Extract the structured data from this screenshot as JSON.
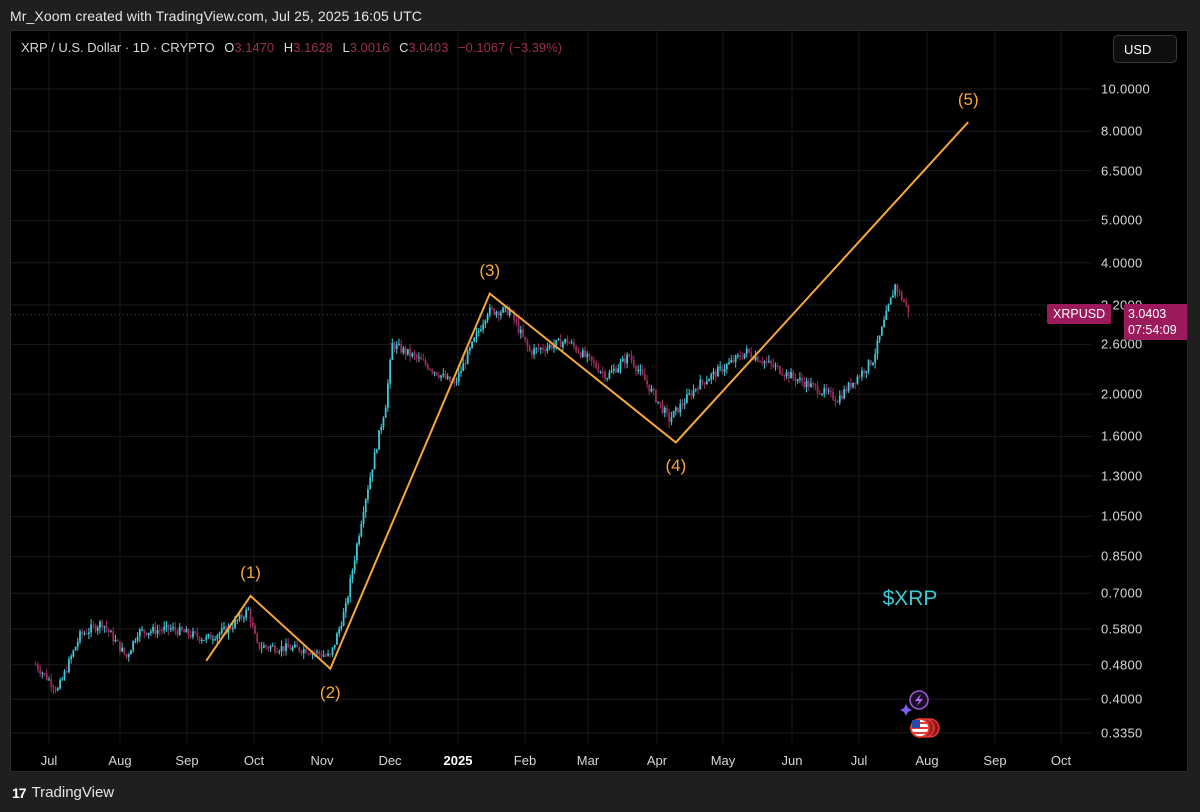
{
  "header": {
    "caption": "Mr_Xoom created with TradingView.com, Jul 25, 2025 16:05 UTC"
  },
  "legend": {
    "symbol": "XRP / U.S. Dollar · 1D · CRYPTO",
    "open_label": "O",
    "open": "3.1470",
    "high_label": "H",
    "high": "3.1628",
    "low_label": "L",
    "low": "3.0016",
    "close_label": "C",
    "close": "3.0403",
    "change": "−0.1067 (−3.39%)"
  },
  "currency_button": {
    "label": "USD"
  },
  "price_tag": {
    "symbol": "XRPUSD",
    "price": "3.0403",
    "countdown": "07:54:09",
    "color": "#9c1a5c"
  },
  "annotation": {
    "text": "$XRP",
    "color": "#3ec9d6"
  },
  "footer": {
    "brand": "TradingView",
    "logo": "17"
  },
  "colors": {
    "background": "#000000",
    "up_candle": "#3ec9d6",
    "down_candle": "#9c2c5b",
    "wave_line": "#f6a73a",
    "grid": "#1a1a1a"
  },
  "chart_data": {
    "type": "candlestick",
    "title": "XRP / U.S. Dollar · 1D · CRYPTO",
    "xlabel": "",
    "ylabel": "USD",
    "y_scale": "log",
    "ylim": [
      0.32,
      11.0
    ],
    "y_ticks": [
      "10.0000",
      "8.0000",
      "6.5000",
      "5.0000",
      "4.0000",
      "3.2000",
      "2.6000",
      "2.0000",
      "1.6000",
      "1.3000",
      "1.0500",
      "0.8500",
      "0.7000",
      "0.5800",
      "0.4800",
      "0.4000",
      "0.3350"
    ],
    "x_ticks": [
      "Jul",
      "Aug",
      "Sep",
      "Oct",
      "Nov",
      "Dec",
      "2025",
      "Feb",
      "Mar",
      "Apr",
      "May",
      "Jun",
      "Jul",
      "Aug",
      "Sep",
      "Oct"
    ],
    "grid": true,
    "last_price": 3.0403,
    "ohlc_last": {
      "open": 3.147,
      "high": 3.1628,
      "low": 3.0016,
      "close": 3.0403,
      "change": -0.1067,
      "change_pct": -3.39
    },
    "price_path": [
      {
        "date": "2024-06-25",
        "price": 0.48
      },
      {
        "date": "2024-07-05",
        "price": 0.42
      },
      {
        "date": "2024-07-15",
        "price": 0.56
      },
      {
        "date": "2024-07-25",
        "price": 0.6
      },
      {
        "date": "2024-08-05",
        "price": 0.5
      },
      {
        "date": "2024-08-10",
        "price": 0.57
      },
      {
        "date": "2024-08-25",
        "price": 0.58
      },
      {
        "date": "2024-09-10",
        "price": 0.55
      },
      {
        "date": "2024-09-20",
        "price": 0.58
      },
      {
        "date": "2024-09-29",
        "price": 0.64
      },
      {
        "date": "2024-10-03",
        "price": 0.53
      },
      {
        "date": "2024-10-25",
        "price": 0.52
      },
      {
        "date": "2024-11-05",
        "price": 0.5
      },
      {
        "date": "2024-11-12",
        "price": 0.65
      },
      {
        "date": "2024-11-20",
        "price": 1.1
      },
      {
        "date": "2024-11-30",
        "price": 1.9
      },
      {
        "date": "2024-12-03",
        "price": 2.6
      },
      {
        "date": "2024-12-15",
        "price": 2.4
      },
      {
        "date": "2024-12-31",
        "price": 2.1
      },
      {
        "date": "2025-01-15",
        "price": 3.1
      },
      {
        "date": "2025-01-25",
        "price": 3.1
      },
      {
        "date": "2025-02-03",
        "price": 2.5
      },
      {
        "date": "2025-02-20",
        "price": 2.65
      },
      {
        "date": "2025-03-10",
        "price": 2.2
      },
      {
        "date": "2025-03-20",
        "price": 2.45
      },
      {
        "date": "2025-04-07",
        "price": 1.75
      },
      {
        "date": "2025-04-20",
        "price": 2.1
      },
      {
        "date": "2025-05-12",
        "price": 2.5
      },
      {
        "date": "2025-06-01",
        "price": 2.2
      },
      {
        "date": "2025-06-22",
        "price": 1.95
      },
      {
        "date": "2025-07-08",
        "price": 2.4
      },
      {
        "date": "2025-07-18",
        "price": 3.55
      },
      {
        "date": "2025-07-25",
        "price": 3.04
      }
    ],
    "elliott_waves": [
      {
        "label": "",
        "date": "2024-09-10",
        "price": 0.49
      },
      {
        "label": "(1)",
        "date": "2024-09-30",
        "price": 0.69
      },
      {
        "label": "(2)",
        "date": "2024-11-05",
        "price": 0.47
      },
      {
        "label": "(3)",
        "date": "2025-01-16",
        "price": 3.4
      },
      {
        "label": "(4)",
        "date": "2025-04-10",
        "price": 1.55
      },
      {
        "label": "(5)",
        "date": "2025-08-20",
        "price": 8.4
      }
    ]
  }
}
